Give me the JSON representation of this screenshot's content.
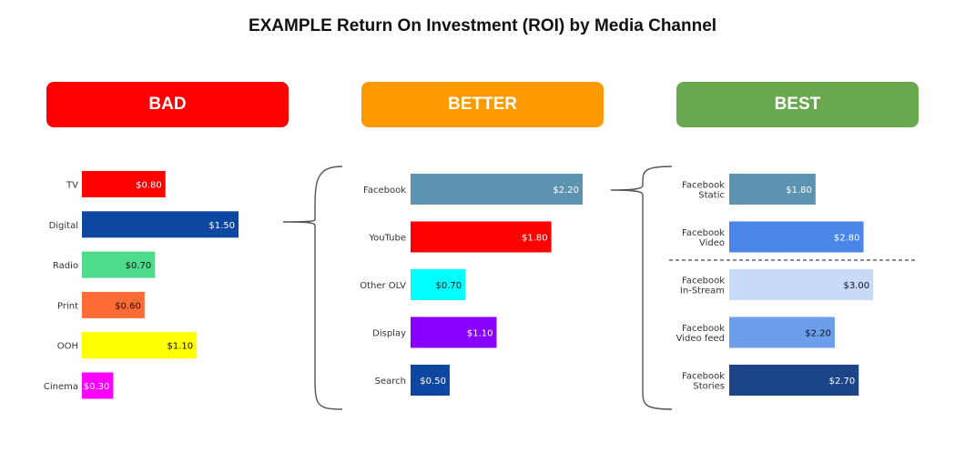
{
  "title": "EXAMPLE Return On Investment (ROI) by Media Channel",
  "chart_data": [
    {
      "type": "bar",
      "orientation": "horizontal",
      "header": "BAD",
      "header_color": "#ff0000",
      "categories": [
        "TV",
        "Digital",
        "Radio",
        "Print",
        "OOH",
        "Cinema"
      ],
      "values": [
        0.8,
        1.5,
        0.7,
        0.6,
        1.1,
        0.3
      ],
      "labels": [
        "$0.80",
        "$1.50",
        "$0.70",
        "$0.60",
        "$1.10",
        "$0.30"
      ],
      "colors": [
        "#ff0000",
        "#0d47a1",
        "#4cdc8c",
        "#ff6b35",
        "#ffff00",
        "#ff00ff"
      ],
      "label_colors": [
        "#ffffff",
        "#ffffff",
        "#111111",
        "#111111",
        "#111111",
        "#ffffff"
      ]
    },
    {
      "type": "bar",
      "orientation": "horizontal",
      "header": "BETTER",
      "header_color": "#ff9900",
      "categories": [
        "Facebook",
        "YouTube",
        "Other OLV",
        "Display",
        "Search"
      ],
      "values": [
        2.2,
        1.8,
        0.7,
        1.1,
        0.5
      ],
      "labels": [
        "$2.20",
        "$1.80",
        "$0.70",
        "$1.10",
        "$0.50"
      ],
      "colors": [
        "#5b93b0",
        "#ff0000",
        "#00ffff",
        "#8800ff",
        "#0d47a1"
      ],
      "label_colors": [
        "#ffffff",
        "#ffffff",
        "#111111",
        "#ffffff",
        "#ffffff"
      ]
    },
    {
      "type": "bar",
      "orientation": "horizontal",
      "header": "BEST",
      "header_color": "#6aa84f",
      "categories": [
        [
          "Facebook",
          "Static"
        ],
        [
          "Facebook",
          "Video"
        ],
        [
          "Facebook",
          "In-Stream"
        ],
        [
          "Facebook",
          "Video feed"
        ],
        [
          "Facebook",
          "Stories"
        ]
      ],
      "values": [
        1.8,
        2.8,
        3.0,
        2.2,
        2.7
      ],
      "labels": [
        "$1.80",
        "$2.80",
        "$3.00",
        "$2.20",
        "$2.70"
      ],
      "colors": [
        "#5b93b0",
        "#4a86e8",
        "#c9daf8",
        "#6d9eeb",
        "#1c4587"
      ],
      "label_colors": [
        "#ffffff",
        "#ffffff",
        "#111111",
        "#111111",
        "#ffffff"
      ],
      "divider_after_index": 1
    }
  ]
}
